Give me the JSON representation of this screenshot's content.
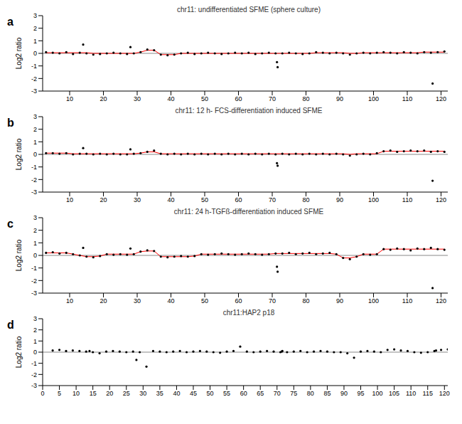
{
  "chart_data": [
    {
      "type": "scatter",
      "label": "a",
      "title": "chr11: undifferentiated SFME (sphere culture)",
      "y_label": "Log2 ratio",
      "baseline": 0,
      "x": [
        3,
        5,
        7,
        9,
        11,
        13,
        14,
        15,
        17,
        19,
        21,
        23,
        25,
        27,
        28,
        29,
        31,
        33,
        35,
        37,
        39,
        41,
        43,
        45,
        47,
        49,
        51,
        53,
        55,
        57,
        59,
        61,
        63,
        65,
        67,
        69,
        71,
        71.4,
        71.6,
        73,
        75,
        77,
        79,
        81,
        83,
        85,
        87,
        89,
        91,
        93,
        95,
        97,
        99,
        101,
        103,
        105,
        107,
        109,
        111,
        113,
        115,
        117,
        117.5,
        119,
        121
      ],
      "xlim": [
        2,
        122
      ],
      "xticks": [
        10,
        20,
        30,
        40,
        50,
        60,
        70,
        80,
        90,
        100,
        110,
        120
      ],
      "ylim": [
        -3,
        3
      ],
      "yticks": [
        -3,
        -2,
        -1,
        0,
        1,
        2,
        3
      ],
      "series": [
        {
          "type": "scatter",
          "color": "#000000",
          "values": [
            0.1,
            0.05,
            0.0,
            0.1,
            -0.05,
            0.05,
            0.7,
            0.0,
            -0.1,
            -0.05,
            0.0,
            0.05,
            0.0,
            -0.05,
            0.5,
            0.0,
            0.1,
            0.3,
            0.25,
            -0.1,
            -0.15,
            -0.1,
            0.0,
            0.05,
            -0.05,
            0.0,
            0.05,
            0.0,
            -0.05,
            0.0,
            0.05,
            0.0,
            0.05,
            -0.05,
            0.0,
            0.05,
            0.0,
            -0.7,
            -1.1,
            0.0,
            0.05,
            0.0,
            -0.05,
            0.0,
            0.1,
            0.05,
            0.0,
            0.05,
            0.0,
            -0.1,
            0.0,
            0.05,
            0.0,
            0.05,
            0.1,
            0.05,
            0.0,
            0.1,
            0.05,
            0.0,
            0.1,
            0.05,
            -2.4,
            0.1,
            0.15
          ]
        },
        {
          "type": "line",
          "color": "#ff0000",
          "values": [
            0.05,
            0.05,
            0.05,
            0.05,
            0.05,
            0.05,
            null,
            0.05,
            0.0,
            0.0,
            0.0,
            0.0,
            0.0,
            0.0,
            null,
            0.0,
            0.1,
            0.25,
            0.25,
            -0.1,
            -0.1,
            -0.1,
            0.0,
            0.0,
            0.0,
            0.0,
            0.0,
            0.0,
            0.0,
            0.0,
            0.0,
            0.0,
            0.0,
            0.0,
            0.0,
            0.0,
            0.0,
            null,
            null,
            0.0,
            0.0,
            0.0,
            0.0,
            0.0,
            0.05,
            0.05,
            0.05,
            0.05,
            0.05,
            0.0,
            0.0,
            0.05,
            0.05,
            0.05,
            0.05,
            0.05,
            0.05,
            0.05,
            0.05,
            0.05,
            0.1,
            0.1,
            null,
            0.1,
            0.1
          ]
        }
      ]
    },
    {
      "type": "scatter",
      "label": "b",
      "title": "chr11: 12 h- FCS-differentiation induced SFME",
      "y_label": "Log2 ratio",
      "baseline": 0,
      "x": [
        3,
        5,
        7,
        9,
        11,
        13,
        14,
        15,
        17,
        19,
        21,
        23,
        25,
        27,
        28,
        29,
        31,
        33,
        35,
        37,
        39,
        41,
        43,
        45,
        47,
        49,
        51,
        53,
        55,
        57,
        59,
        61,
        63,
        65,
        67,
        69,
        71,
        71.4,
        71.6,
        73,
        75,
        77,
        79,
        81,
        83,
        85,
        87,
        89,
        91,
        93,
        95,
        97,
        99,
        101,
        103,
        105,
        107,
        109,
        111,
        113,
        115,
        117,
        117.5,
        119,
        121
      ],
      "xlim": [
        2,
        122
      ],
      "xticks": [
        10,
        20,
        30,
        40,
        50,
        60,
        70,
        80,
        90,
        100,
        110,
        120
      ],
      "ylim": [
        -3,
        3
      ],
      "yticks": [
        -3,
        -2,
        -1,
        0,
        1,
        2,
        3
      ],
      "series": [
        {
          "type": "scatter",
          "color": "#000000",
          "values": [
            0.1,
            0.1,
            0.05,
            0.1,
            0.0,
            0.05,
            0.5,
            0.05,
            0.0,
            0.05,
            0.0,
            0.05,
            0.0,
            0.0,
            0.4,
            0.05,
            0.1,
            0.2,
            0.3,
            0.05,
            0.0,
            0.05,
            0.0,
            0.05,
            0.0,
            0.05,
            0.0,
            0.05,
            0.0,
            0.05,
            0.0,
            0.05,
            0.0,
            0.05,
            0.0,
            0.05,
            0.0,
            -0.7,
            -0.9,
            0.05,
            0.0,
            0.05,
            0.0,
            0.05,
            0.0,
            0.05,
            0.0,
            0.05,
            0.0,
            -0.1,
            0.0,
            0.05,
            0.0,
            0.1,
            0.25,
            0.3,
            0.2,
            0.25,
            0.3,
            0.25,
            0.3,
            0.2,
            -2.1,
            0.25,
            0.2
          ]
        },
        {
          "type": "line",
          "color": "#ff0000",
          "values": [
            0.1,
            0.1,
            0.1,
            0.1,
            0.05,
            0.05,
            null,
            0.05,
            0.05,
            0.05,
            0.05,
            0.05,
            0.05,
            0.05,
            null,
            0.05,
            0.1,
            0.2,
            0.2,
            0.05,
            0.05,
            0.05,
            0.05,
            0.05,
            0.05,
            0.05,
            0.05,
            0.05,
            0.05,
            0.05,
            0.05,
            0.05,
            0.05,
            0.05,
            0.05,
            0.05,
            0.05,
            null,
            null,
            0.05,
            0.05,
            0.05,
            0.05,
            0.05,
            0.05,
            0.05,
            0.05,
            0.05,
            0.05,
            0.0,
            0.05,
            0.05,
            0.05,
            0.05,
            0.25,
            0.25,
            0.25,
            0.25,
            0.25,
            0.25,
            0.25,
            0.25,
            null,
            0.25,
            0.25
          ]
        }
      ]
    },
    {
      "type": "scatter",
      "label": "c",
      "title": "chr11: 24 h-TGFß-differentiation induced SFME",
      "y_label": "Log2 ratio",
      "baseline": 0,
      "x": [
        3,
        5,
        7,
        9,
        11,
        13,
        14,
        15,
        17,
        19,
        21,
        23,
        25,
        27,
        28,
        29,
        31,
        33,
        35,
        37,
        39,
        41,
        43,
        45,
        47,
        49,
        51,
        53,
        55,
        57,
        59,
        61,
        63,
        65,
        67,
        69,
        71,
        71.4,
        71.6,
        73,
        75,
        77,
        79,
        81,
        83,
        85,
        87,
        89,
        91,
        93,
        95,
        97,
        99,
        101,
        103,
        105,
        107,
        109,
        111,
        113,
        115,
        117,
        117.5,
        119,
        121
      ],
      "xlim": [
        2,
        122
      ],
      "xticks": [
        10,
        20,
        30,
        40,
        50,
        60,
        70,
        80,
        90,
        100,
        110,
        120
      ],
      "ylim": [
        -3,
        3
      ],
      "yticks": [
        -3,
        -2,
        -1,
        0,
        1,
        2,
        3
      ],
      "series": [
        {
          "type": "scatter",
          "color": "#000000",
          "values": [
            0.2,
            0.25,
            0.15,
            0.2,
            0.1,
            0.0,
            0.6,
            -0.1,
            -0.15,
            -0.05,
            0.1,
            0.05,
            0.1,
            0.05,
            0.55,
            0.1,
            0.3,
            0.4,
            0.35,
            -0.1,
            -0.15,
            -0.1,
            -0.05,
            -0.1,
            -0.05,
            0.1,
            0.05,
            0.1,
            0.15,
            0.1,
            0.05,
            0.1,
            0.15,
            0.1,
            0.05,
            0.1,
            0.15,
            -0.9,
            -1.3,
            0.15,
            0.2,
            0.1,
            0.15,
            0.2,
            0.1,
            0.15,
            0.2,
            0.1,
            -0.2,
            -0.3,
            -0.1,
            0.1,
            0.05,
            0.1,
            0.5,
            0.45,
            0.55,
            0.5,
            0.4,
            0.55,
            0.5,
            0.6,
            -2.6,
            0.5,
            0.45
          ]
        },
        {
          "type": "line",
          "color": "#ff0000",
          "values": [
            0.2,
            0.2,
            0.2,
            0.2,
            0.1,
            0.0,
            null,
            -0.1,
            -0.1,
            -0.05,
            0.1,
            0.1,
            0.1,
            0.1,
            null,
            0.1,
            0.3,
            0.35,
            0.35,
            -0.1,
            -0.1,
            -0.1,
            -0.1,
            -0.1,
            -0.05,
            0.1,
            0.1,
            0.1,
            0.1,
            0.1,
            0.1,
            0.1,
            0.1,
            0.1,
            0.1,
            0.1,
            0.15,
            null,
            null,
            0.15,
            0.15,
            0.15,
            0.15,
            0.15,
            0.15,
            0.15,
            0.15,
            0.1,
            -0.2,
            -0.2,
            -0.1,
            0.1,
            0.1,
            0.1,
            0.5,
            0.5,
            0.5,
            0.5,
            0.5,
            0.5,
            0.5,
            0.5,
            null,
            0.5,
            0.5
          ]
        }
      ]
    },
    {
      "type": "scatter",
      "label": "d",
      "title": "chr11:HAP2 p18",
      "y_label": "Log2 ratio",
      "baseline": 0,
      "x": [
        3,
        5,
        7,
        9,
        11,
        13,
        14,
        15,
        17,
        19,
        21,
        23,
        25,
        27,
        28,
        29,
        31,
        33,
        35,
        37,
        39,
        41,
        43,
        45,
        47,
        49,
        51,
        53,
        55,
        57,
        59,
        61,
        63,
        65,
        67,
        69,
        71,
        71.4,
        71.6,
        73,
        75,
        77,
        79,
        81,
        83,
        85,
        87,
        89,
        91,
        93,
        95,
        97,
        99,
        101,
        103,
        105,
        107,
        109,
        111,
        113,
        115,
        117,
        117.5,
        119,
        121
      ],
      "xlim": [
        0,
        121
      ],
      "xticks": [
        0,
        5,
        10,
        15,
        20,
        25,
        30,
        35,
        40,
        45,
        50,
        55,
        60,
        65,
        70,
        75,
        80,
        85,
        90,
        95,
        100,
        105,
        110,
        115,
        120
      ],
      "ylim": [
        -3,
        3
      ],
      "yticks": [
        -3,
        -2,
        -1,
        0,
        1,
        2,
        3
      ],
      "series": [
        {
          "type": "scatter",
          "color": "#000000",
          "values": [
            0.15,
            0.2,
            0.1,
            0.15,
            0.1,
            0.05,
            0.1,
            0.0,
            -0.1,
            0.05,
            0.1,
            0.05,
            0.0,
            0.05,
            -0.7,
            0.0,
            -1.3,
            0.1,
            0.05,
            0.0,
            0.05,
            0.1,
            0.0,
            0.05,
            0.1,
            0.05,
            0.0,
            -0.05,
            0.05,
            0.1,
            0.5,
            0.05,
            0.0,
            0.05,
            0.1,
            0.05,
            0.0,
            0.05,
            0.1,
            0.0,
            0.05,
            0.1,
            0.0,
            0.05,
            0.1,
            0.05,
            0.0,
            0.0,
            -0.1,
            -0.5,
            0.05,
            0.1,
            0.05,
            0.0,
            0.2,
            0.25,
            0.15,
            0.1,
            0.0,
            -0.05,
            0.0,
            0.1,
            0.15,
            0.2,
            0.25
          ]
        }
      ]
    }
  ]
}
